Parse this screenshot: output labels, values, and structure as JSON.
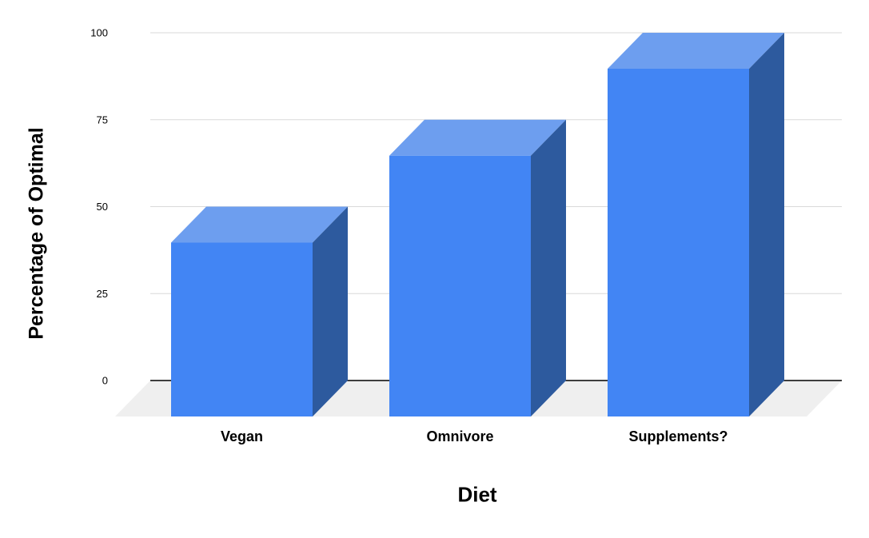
{
  "chart_data": {
    "type": "bar",
    "variant": "3d-column",
    "title": "",
    "xlabel": "Diet",
    "ylabel": "Percentage of Optimal",
    "categories": [
      "Vegan",
      "Omnivore",
      "Supplements?"
    ],
    "values": [
      50,
      75,
      100
    ],
    "series": [
      {
        "name": "Percentage of Optimal",
        "values": [
          50,
          75,
          100
        ]
      }
    ],
    "ylim": [
      0,
      100
    ],
    "y_ticks": [
      0,
      25,
      50,
      75,
      100
    ],
    "grid": true,
    "legend_position": "none",
    "colors": {
      "bar_front": "#4285f4",
      "bar_top": "#6d9eef",
      "bar_side": "#2d5a9e",
      "gridline": "#d9d9d9",
      "zero_line": "#000000",
      "floor": "#efefef",
      "text": "#000000",
      "background": "#ffffff"
    }
  }
}
